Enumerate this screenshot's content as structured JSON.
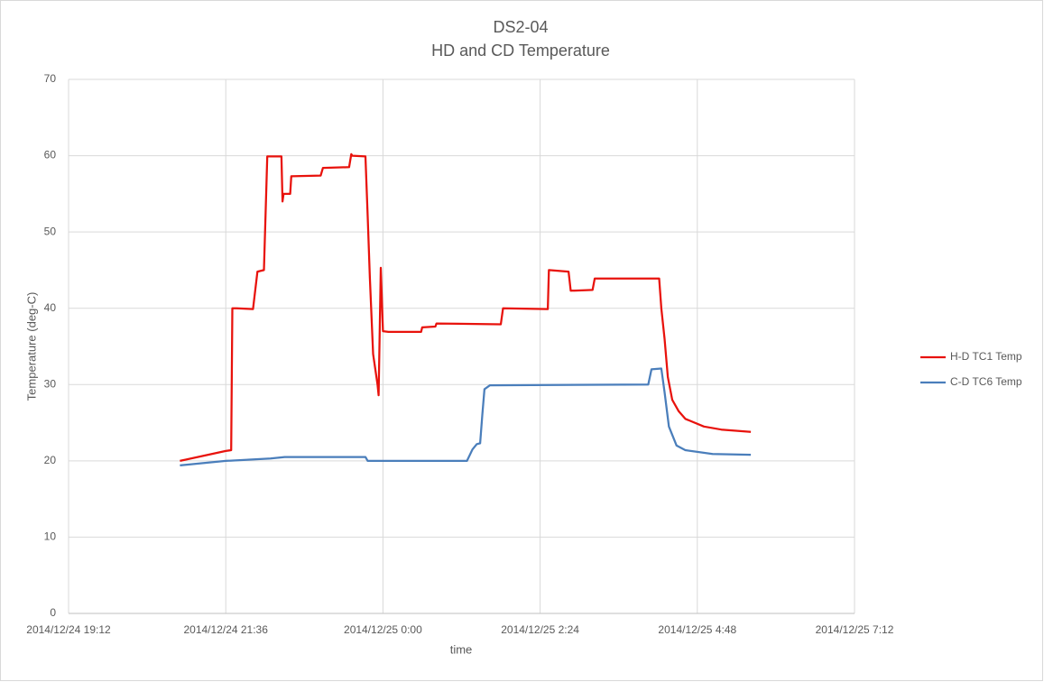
{
  "chart_data": {
    "type": "line",
    "title": "DS2-04",
    "subtitle": "HD and CD Temperature",
    "x_label": "time",
    "y_label": "Temperature (deg-C)",
    "xlim": [
      "2014/12/24 19:12",
      "2014/12/25 7:12"
    ],
    "xticks": [
      "2014/12/24 19:12",
      "2014/12/24 21:36",
      "2014/12/25 0:00",
      "2014/12/25 2:24",
      "2014/12/25 4:48",
      "2014/12/25 7:12"
    ],
    "ylim": [
      0,
      70
    ],
    "yticks": [
      0,
      10,
      20,
      30,
      40,
      50,
      60,
      70
    ],
    "grid": true,
    "legend": "right",
    "series": [
      {
        "name": "H-D TC1 Temp",
        "color": "#e8120c",
        "x": [
          "2014/12/24 20:54",
          "2014/12/24 21:36",
          "2014/12/24 21:41",
          "2014/12/24 21:42",
          "2014/12/24 21:46",
          "2014/12/24 22:01",
          "2014/12/24 22:05",
          "2014/12/24 22:11",
          "2014/12/24 22:14",
          "2014/12/24 22:27",
          "2014/12/24 22:28",
          "2014/12/24 22:29",
          "2014/12/24 22:35",
          "2014/12/24 22:36",
          "2014/12/24 23:03",
          "2014/12/24 23:05",
          "2014/12/24 23:29",
          "2014/12/24 23:31",
          "2014/12/24 23:32",
          "2014/12/24 23:44",
          "2014/12/24 23:46",
          "2014/12/24 23:48",
          "2014/12/24 23:51",
          "2014/12/24 23:55",
          "2014/12/24 23:56",
          "2014/12/24 23:58",
          "2014/12/25 0:00",
          "2014/12/25 0:05",
          "2014/12/25 0:35",
          "2014/12/25 0:36",
          "2014/12/25 0:48",
          "2014/12/25 0:49",
          "2014/12/25 1:48",
          "2014/12/25 1:50",
          "2014/12/25 2:31",
          "2014/12/25 2:32",
          "2014/12/25 2:50",
          "2014/12/25 2:52",
          "2014/12/25 3:12",
          "2014/12/25 3:14",
          "2014/12/25 4:13",
          "2014/12/25 4:15",
          "2014/12/25 4:18",
          "2014/12/25 4:21",
          "2014/12/25 4:25",
          "2014/12/25 4:31",
          "2014/12/25 4:37",
          "2014/12/25 4:54",
          "2014/12/25 5:10",
          "2014/12/25 5:37"
        ],
        "values": [
          20.0,
          21.3,
          21.4,
          40,
          40,
          39.9,
          44.8,
          45,
          59.9,
          59.9,
          54,
          55,
          55,
          57.3,
          57.4,
          58.4,
          58.5,
          60.2,
          60,
          59.9,
          52,
          44,
          34,
          30,
          28.6,
          45.3,
          37,
          36.9,
          36.9,
          37.5,
          37.6,
          38,
          37.9,
          40,
          39.9,
          45,
          44.8,
          42.3,
          42.4,
          43.9,
          43.9,
          40,
          36,
          31,
          28,
          26.5,
          25.5,
          24.5,
          24.1,
          23.8
        ]
      },
      {
        "name": "C-D TC6 Temp",
        "color": "#4a7ebb",
        "x": [
          "2014/12/24 20:54",
          "2014/12/24 21:36",
          "2014/12/24 22:17",
          "2014/12/24 22:30",
          "2014/12/24 23:44",
          "2014/12/24 23:46",
          "2014/12/25 1:17",
          "2014/12/25 1:22",
          "2014/12/25 1:26",
          "2014/12/25 1:29",
          "2014/12/25 1:31",
          "2014/12/25 1:33",
          "2014/12/25 1:38",
          "2014/12/25 4:03",
          "2014/12/25 4:06",
          "2014/12/25 4:15",
          "2014/12/25 4:18",
          "2014/12/25 4:22",
          "2014/12/25 4:29",
          "2014/12/25 4:37",
          "2014/12/25 5:02",
          "2014/12/25 5:37"
        ],
        "values": [
          19.4,
          20.0,
          20.3,
          20.5,
          20.5,
          20.0,
          20.0,
          21.5,
          22.2,
          22.3,
          26,
          29.4,
          29.9,
          30.0,
          32,
          32.1,
          29,
          24.5,
          22,
          21.4,
          20.9,
          20.8
        ]
      }
    ]
  }
}
